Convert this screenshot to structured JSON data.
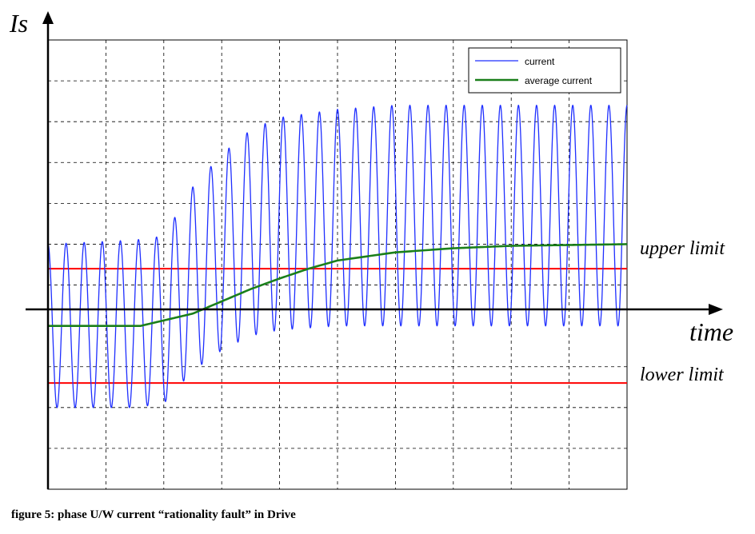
{
  "caption": "figure 5: phase U/W current “rationality fault” in Drive",
  "chart_data": {
    "type": "line",
    "ylabel": "Is",
    "xlabel": "time",
    "grid": true,
    "legend_position": "top-right",
    "xlim": [
      0,
      10
    ],
    "ylim": [
      -2,
      3.5
    ],
    "x_axis_at_y": 0,
    "series": [
      {
        "name": "current",
        "color": "#1f2fff",
        "kind": "oscillation",
        "cycles": 32,
        "x": [
          0,
          1.5,
          2,
          2.5,
          3,
          3.5,
          4,
          5,
          6,
          7,
          8,
          10
        ],
        "peak": [
          1.0,
          1.05,
          1.1,
          1.7,
          2.1,
          2.4,
          2.55,
          2.65,
          2.7,
          2.7,
          2.7,
          2.7
        ],
        "trough": [
          -1.0,
          -1.0,
          -0.95,
          -0.55,
          -0.3,
          -0.12,
          -0.05,
          0.0,
          0.0,
          0.0,
          0.0,
          0.0
        ]
      },
      {
        "name": "average current",
        "color": "#1a7f1a",
        "x": [
          0,
          1.6,
          2.5,
          3,
          3.5,
          4,
          4.5,
          5,
          6,
          7,
          8,
          9,
          10
        ],
        "y": [
          0,
          0,
          0.15,
          0.3,
          0.45,
          0.58,
          0.7,
          0.8,
          0.9,
          0.95,
          0.98,
          0.99,
          1.0
        ]
      }
    ],
    "reference_lines": [
      {
        "label": "upper limit",
        "y": 0.7,
        "color": "#ff0000"
      },
      {
        "label": "lower limit",
        "y": -0.7,
        "color": "#ff0000"
      }
    ]
  }
}
